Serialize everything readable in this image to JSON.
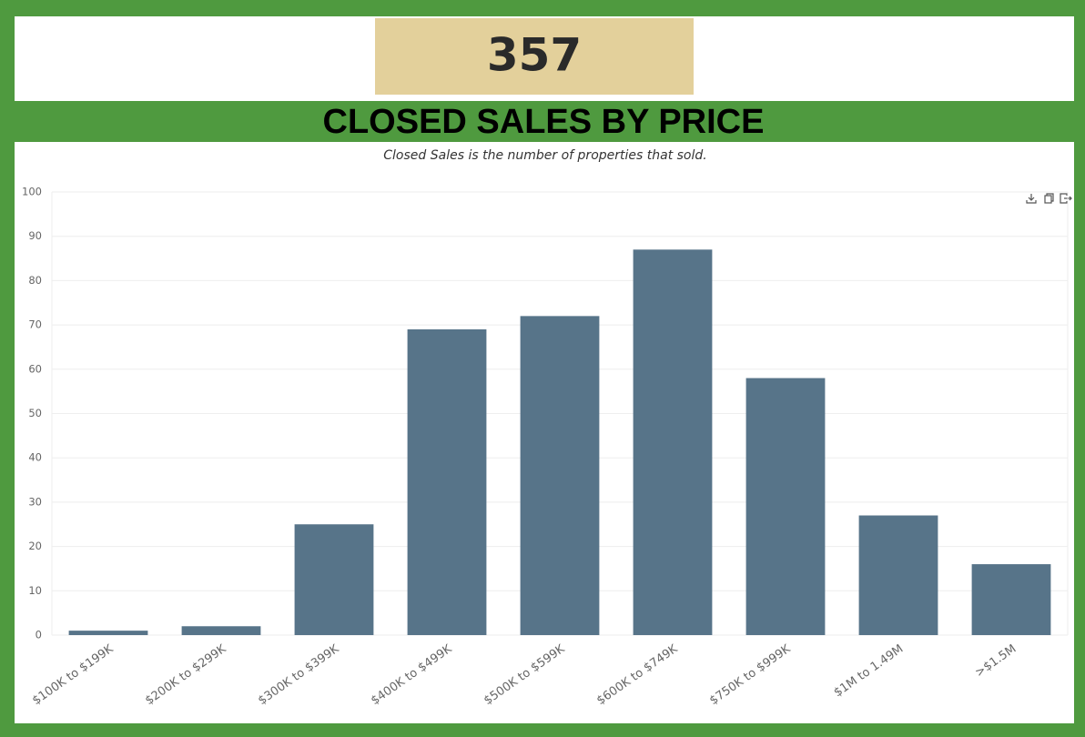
{
  "header": {
    "total": 357
  },
  "chart_data": {
    "type": "bar",
    "title": "CLOSED SALES BY PRICE",
    "subtitle": "Closed Sales is the number of properties that sold.",
    "categories": [
      "$100K to $199K",
      "$200K to $299K",
      "$300K to $399K",
      "$400K to $499K",
      "$500K to $599K",
      "$600K to $749K",
      "$750K to $999K",
      "$1M to 1.49M",
      ">$1.5M"
    ],
    "values": [
      1,
      2,
      25,
      69,
      72,
      87,
      58,
      27,
      16
    ],
    "color": "#577489",
    "ylim": [
      0,
      100
    ],
    "yticks": [
      0,
      10,
      20,
      30,
      40,
      50,
      60,
      70,
      80,
      90,
      100
    ],
    "grid": true
  }
}
